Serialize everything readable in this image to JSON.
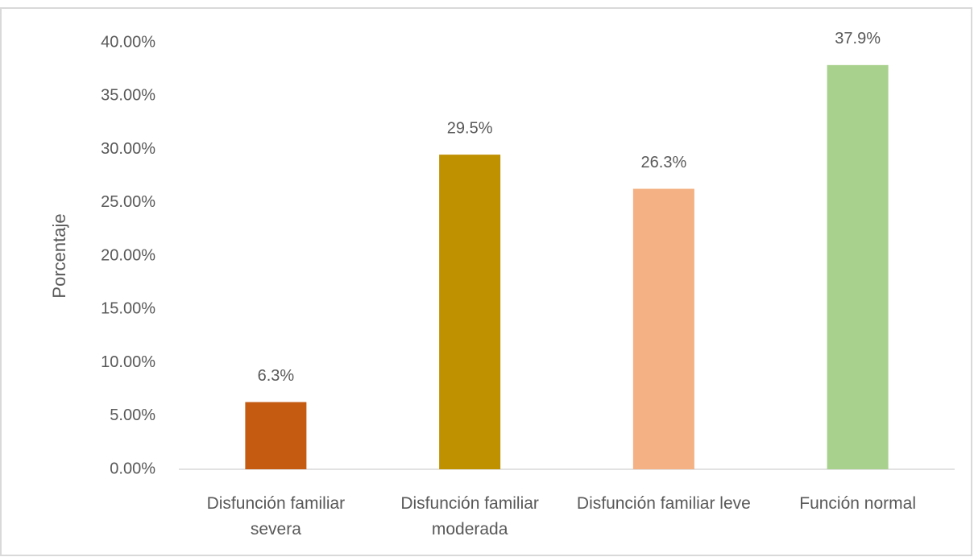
{
  "chart_data": {
    "type": "bar",
    "y_label": "Porcentaje",
    "categories": [
      "Disfunción familiar severa",
      "Disfunción familiar moderada",
      "Disfunción familiar leve",
      "Función normal"
    ],
    "values": [
      6.3,
      29.5,
      26.3,
      37.9
    ],
    "value_labels": [
      "6.3%",
      "29.5%",
      "26.3%",
      "37.9%"
    ],
    "colors": [
      "#c55a11",
      "#bf9000",
      "#f4b183",
      "#a9d18e"
    ],
    "ylim": [
      0,
      40
    ],
    "yticks": [
      {
        "value": 0,
        "label": "0.00%"
      },
      {
        "value": 5,
        "label": "5.00%"
      },
      {
        "value": 10,
        "label": "10.00%"
      },
      {
        "value": 15,
        "label": "15.00%"
      },
      {
        "value": 20,
        "label": "20.00%"
      },
      {
        "value": 25,
        "label": "25.00%"
      },
      {
        "value": 30,
        "label": "30.00%"
      },
      {
        "value": 35,
        "label": "35.00%"
      },
      {
        "value": 40,
        "label": "40.00%"
      }
    ],
    "grid": false
  }
}
